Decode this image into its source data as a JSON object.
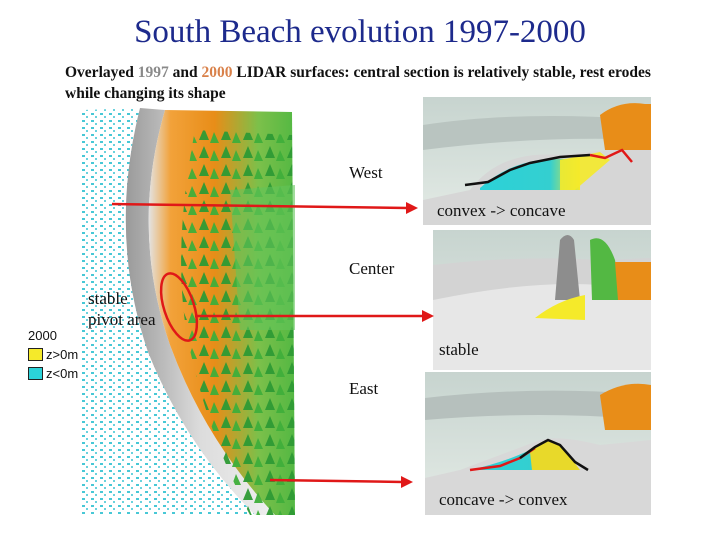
{
  "title": "South Beach evolution 1997-2000",
  "subtitle": {
    "prefix": "Overlayed ",
    "year_1997": "1997",
    "middle": " and ",
    "year_2000": "2000",
    "suffix": " LIDAR surfaces: central section is relatively stable, rest erodes while changing its shape"
  },
  "legend": {
    "title": "2000",
    "items": [
      {
        "label": "z>0m",
        "color": "#f5ea2a"
      },
      {
        "label": "z<0m",
        "color": "#2bd2d8"
      }
    ]
  },
  "pivot_label": [
    "stable",
    "pivot area"
  ],
  "panels": {
    "west": {
      "name": "West",
      "caption": "convex -> concave"
    },
    "center": {
      "name": "Center",
      "caption": "stable"
    },
    "east": {
      "name": "East",
      "caption": "concave -> convex"
    }
  },
  "colors": {
    "title": "#1d2a8c",
    "profile_1997": "#111111",
    "profile_2000": "#e01818",
    "arrow": "#e01818",
    "terrain_high": "#e8921a",
    "vegetation": "#3fae3a",
    "water": "#2bd2d8"
  }
}
